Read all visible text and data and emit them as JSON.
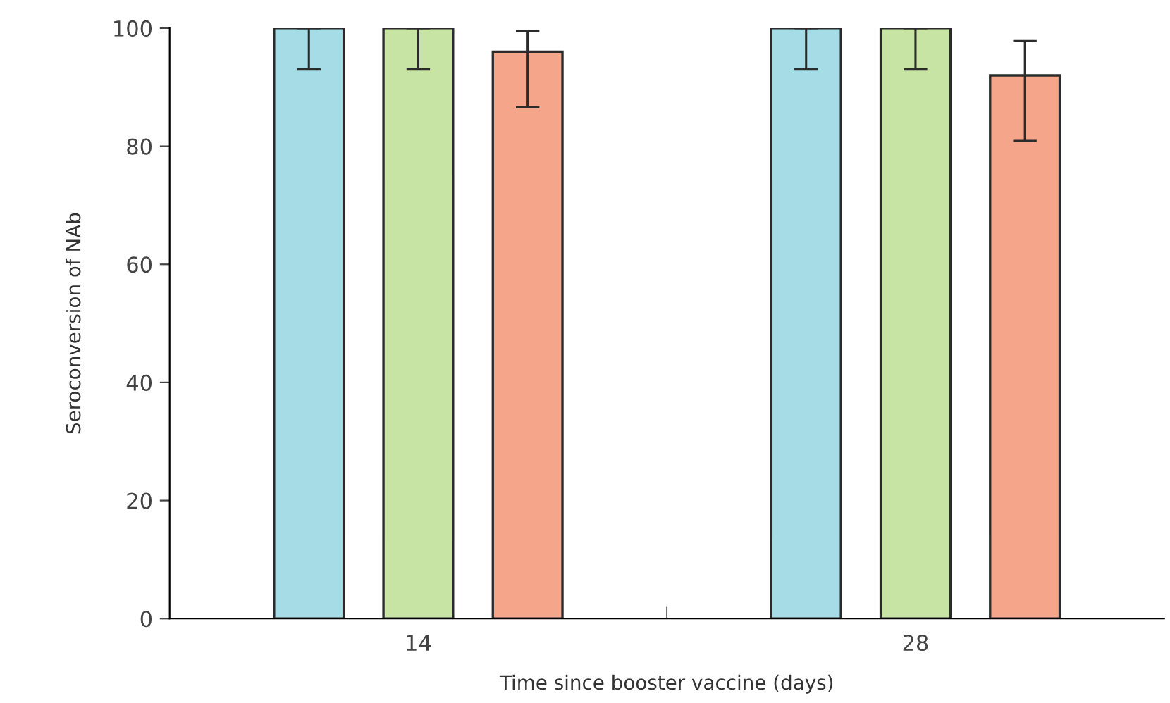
{
  "chart_data": {
    "type": "bar",
    "xlabel": "Time since booster vaccine (days)",
    "ylabel": "Seroconversion of NAb",
    "categories": [
      "14",
      "28"
    ],
    "series": [
      {
        "color": "#a6dce6",
        "values": [
          100,
          100
        ],
        "errors": [
          [
            93,
            100
          ],
          [
            93,
            100
          ]
        ]
      },
      {
        "color": "#c8e4a5",
        "values": [
          100,
          100
        ],
        "errors": [
          [
            93,
            100
          ],
          [
            93,
            100
          ]
        ]
      },
      {
        "color": "#f4a58a",
        "values": [
          96,
          92
        ],
        "errors": [
          [
            86.6,
            99.5
          ],
          [
            80.9,
            97.8
          ]
        ]
      }
    ],
    "ylim": [
      0,
      100
    ],
    "yticks": [
      0,
      20,
      40,
      60,
      80,
      100
    ],
    "grid": false
  }
}
